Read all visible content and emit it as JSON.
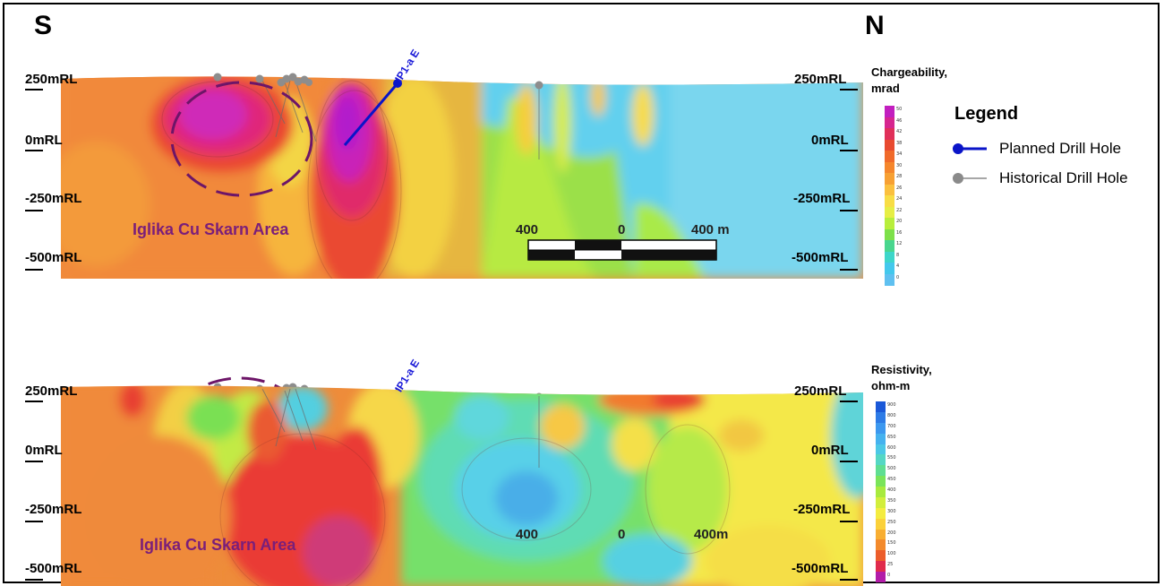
{
  "compass": {
    "south": "S",
    "north": "N"
  },
  "top_panel": {
    "rl_left": [
      "250mRL",
      "0mRL",
      "-250mRL",
      "-500mRL"
    ],
    "rl_right": [
      "250mRL",
      "0mRL",
      "-250mRL",
      "-500mRL"
    ],
    "colorbar_title_line1": "Chargeability,",
    "colorbar_title_line2": "mrad",
    "colorbar_labels": [
      "50",
      "46",
      "42",
      "38",
      "34",
      "30",
      "28",
      "26",
      "24",
      "22",
      "20",
      "16",
      "12",
      "8",
      "4",
      "0"
    ],
    "area_label": "Iglika Cu Skarn Area",
    "hole_label": "IP1-a E",
    "scale_left": "400",
    "scale_mid": "0",
    "scale_right": "400 m"
  },
  "bottom_panel": {
    "rl_left": [
      "250mRL",
      "0mRL",
      "-250mRL",
      "-500mRL"
    ],
    "rl_right": [
      "250mRL",
      "0mRL",
      "-250mRL",
      "-500mRL"
    ],
    "colorbar_title_line1": "Resistivity,",
    "colorbar_title_line2": "ohm-m",
    "colorbar_labels": [
      "900",
      "800",
      "700",
      "650",
      "600",
      "550",
      "500",
      "450",
      "400",
      "350",
      "300",
      "250",
      "200",
      "150",
      "100",
      "25",
      "0"
    ],
    "area_label": "Iglika Cu Skarn Area",
    "hole_label": "IP1-a E",
    "scale_left": "400",
    "scale_mid": "0",
    "scale_right": "400m"
  },
  "legend": {
    "title": "Legend",
    "items": [
      {
        "label": "Planned  Drill Hole",
        "icon": "planned-drill-hole-symbol",
        "color": "#0a14c8"
      },
      {
        "label": "Historical Drill Hole",
        "icon": "historical-drill-hole-symbol",
        "color": "#8a8a8a"
      }
    ]
  },
  "colors": {
    "chargeability_scale": [
      "#c21fbf",
      "#d6268f",
      "#e0305a",
      "#e84a30",
      "#f06a2a",
      "#f5862c",
      "#f7a033",
      "#fbc03e",
      "#f8dd45",
      "#e6ee45",
      "#b8ee3c",
      "#7de04a",
      "#49d68e",
      "#3dd6c9",
      "#43c8ec",
      "#5fc0f0"
    ],
    "resistivity_scale": [
      "#1a58d8",
      "#2d7be6",
      "#3c98ef",
      "#45b2ef",
      "#4cc8e6",
      "#55d7c4",
      "#5fde92",
      "#7ae45a",
      "#a8ea3e",
      "#d2ee3c",
      "#f4ec40",
      "#fbd13a",
      "#f8ae32",
      "#f38a2c",
      "#ec5d2b",
      "#e02b4c",
      "#b21ca8"
    ]
  }
}
